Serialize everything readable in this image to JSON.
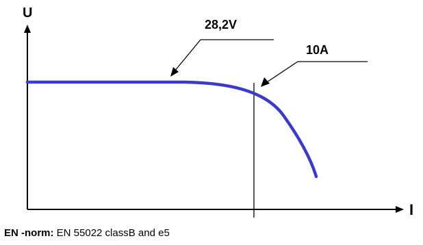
{
  "axes": {
    "y_label": "U",
    "x_label": "I"
  },
  "annotations": {
    "voltage": "28,2V",
    "current": "10A"
  },
  "footer": {
    "label": "EN -norm:",
    "text": "EN 55022 classB  and  e5"
  },
  "colors": {
    "curve": "#3a3acd",
    "axes": "#000000"
  }
}
